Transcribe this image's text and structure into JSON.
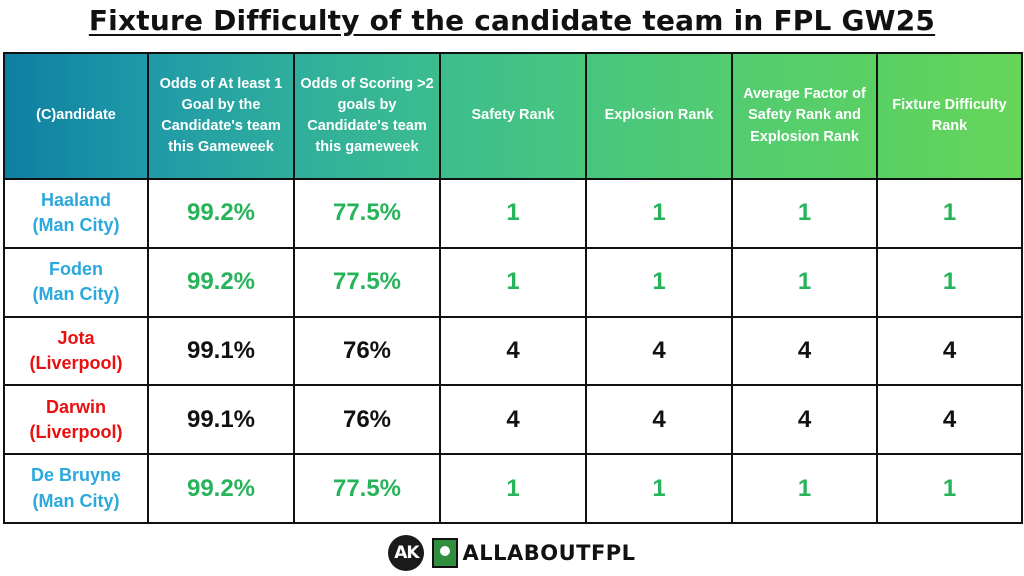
{
  "title": "Fixture Difficulty of the candidate team in FPL GW25",
  "headers": [
    "(C)andidate",
    "Odds of At least 1 Goal by the Candidate's team this Gameweek",
    "Odds of Scoring >2 goals by Candidate's team this gameweek",
    "Safety Rank",
    "Explosion Rank",
    "Average Factor of Safety Rank and Explosion Rank",
    "Fixture Difficulty Rank"
  ],
  "rows": [
    {
      "name": "Haaland",
      "team": "(Man City)",
      "cells": [
        "99.2%",
        "77.5%",
        "1",
        "1",
        "1",
        "1"
      ]
    },
    {
      "name": "Foden",
      "team": "(Man City)",
      "cells": [
        "99.2%",
        "77.5%",
        "1",
        "1",
        "1",
        "1"
      ]
    },
    {
      "name": "Jota",
      "team": "(Liverpool)",
      "cells": [
        "99.1%",
        "76%",
        "4",
        "4",
        "4",
        "4"
      ]
    },
    {
      "name": "Darwin",
      "team": "(Liverpool)",
      "cells": [
        "99.1%",
        "76%",
        "4",
        "4",
        "4",
        "4"
      ]
    },
    {
      "name": "De Bruyne",
      "team": "(Man City)",
      "cells": [
        "99.2%",
        "77.5%",
        "1",
        "1",
        "1",
        "1"
      ]
    }
  ],
  "colors": {
    "man_city": "#2ba8dc",
    "liverpool": "#e81010",
    "green_value": "#27b35a",
    "black_value": "#111111"
  },
  "footer": {
    "logo_text": "AK",
    "brand": "ALLABOUTFPL"
  }
}
